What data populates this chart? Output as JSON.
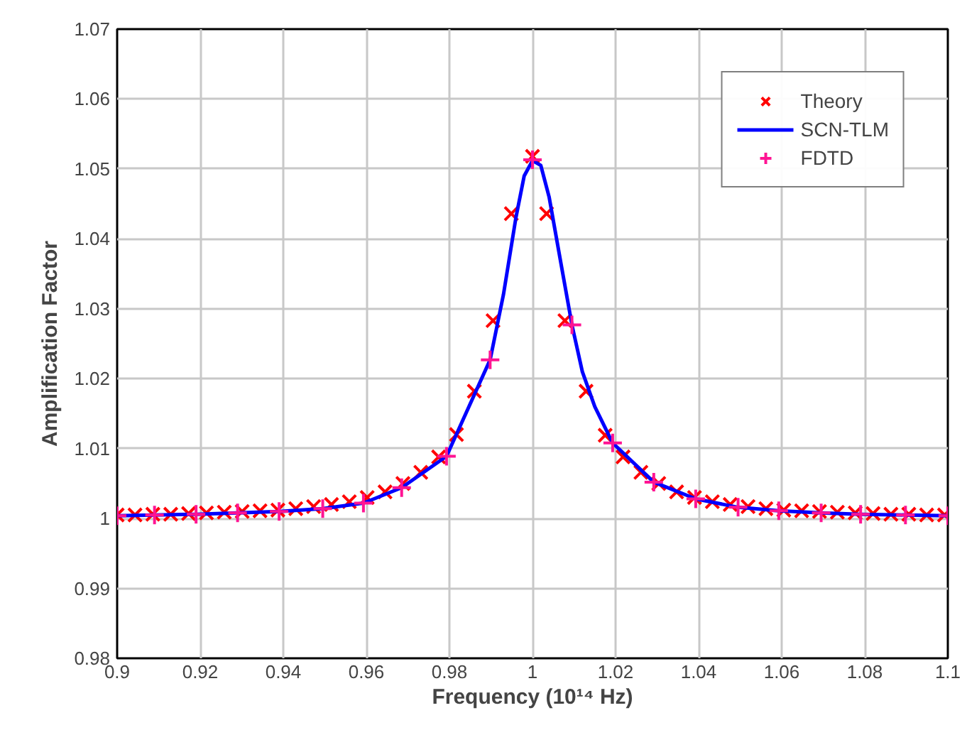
{
  "chart_data": {
    "type": "line",
    "xlabel": "Frequency (10¹⁴ Hz)",
    "ylabel": "Amplification Factor",
    "xlim": [
      0.9,
      1.1
    ],
    "ylim": [
      0.98,
      1.07
    ],
    "xticks": [
      0.9,
      0.92,
      0.94,
      0.96,
      0.98,
      1,
      1.02,
      1.04,
      1.06,
      1.08,
      1.1
    ],
    "yticks": [
      0.98,
      0.99,
      1,
      1.01,
      1.02,
      1.03,
      1.04,
      1.05,
      1.06,
      1.07
    ],
    "grid": true,
    "legend": "top right",
    "series": [
      {
        "name": "Theory",
        "type": "scatter",
        "marker": "x",
        "color": "#ff0000",
        "x": [
          0.9,
          0.9043,
          0.9086,
          0.9129,
          0.9172,
          0.9215,
          0.9258,
          0.9301,
          0.9344,
          0.9387,
          0.943,
          0.9473,
          0.9516,
          0.9559,
          0.9602,
          0.9645,
          0.9688,
          0.9731,
          0.9774,
          0.9817,
          0.986,
          0.9905,
          0.9949,
          1.0,
          1.0034,
          1.0078,
          1.0129,
          1.0175,
          1.0218,
          1.0261,
          1.0304,
          1.0347,
          1.039,
          1.0433,
          1.0476,
          1.0519,
          1.0562,
          1.0605,
          1.0648,
          1.0691,
          1.0734,
          1.0777,
          1.082,
          1.0863,
          1.0906,
          1.0949,
          1.0992
        ],
        "values": [
          1.0005,
          1.0005,
          1.0006,
          1.0006,
          1.0007,
          1.0008,
          1.0009,
          1.001,
          1.0011,
          1.0012,
          1.0014,
          1.0017,
          1.002,
          1.0024,
          1.003,
          1.0038,
          1.005,
          1.0066,
          1.0088,
          1.012,
          1.0182,
          1.0283,
          1.0436,
          1.0518,
          1.0436,
          1.0283,
          1.0182,
          1.0119,
          1.0088,
          1.0066,
          1.005,
          1.0038,
          1.003,
          1.0024,
          1.002,
          1.0017,
          1.0014,
          1.0012,
          1.0011,
          1.001,
          1.0009,
          1.0008,
          1.0007,
          1.0006,
          1.0006,
          1.0005,
          1.0005
        ]
      },
      {
        "name": "SCN-TLM",
        "color": "#0000ff",
        "x": [
          0.9,
          0.909,
          0.919,
          0.929,
          0.939,
          0.9495,
          0.9593,
          0.9685,
          0.9793,
          0.9898,
          0.993,
          0.996,
          0.998,
          1.0,
          1.002,
          1.004,
          1.007,
          1.0095,
          1.012,
          1.015,
          1.0193,
          1.0292,
          1.0393,
          1.0495,
          1.0593,
          1.0695,
          1.079,
          1.0898,
          1.1
        ],
        "values": [
          1.0004,
          1.0005,
          1.0006,
          1.0008,
          1.001,
          1.0014,
          1.0022,
          1.0044,
          1.0089,
          1.0227,
          1.032,
          1.043,
          1.049,
          1.0512,
          1.0505,
          1.046,
          1.036,
          1.0277,
          1.021,
          1.016,
          1.0108,
          1.0052,
          1.0028,
          1.0016,
          1.0011,
          1.0008,
          1.0006,
          1.0005,
          1.0004
        ]
      },
      {
        "name": "FDTD",
        "type": "scatter",
        "marker": "cross",
        "color": "#ff1493",
        "x": [
          0.9,
          0.909,
          0.919,
          0.929,
          0.939,
          0.9495,
          0.9593,
          0.9685,
          0.9793,
          0.9898,
          1.0,
          1.0095,
          1.0193,
          1.0292,
          1.0393,
          1.0495,
          1.0593,
          1.0695,
          1.079,
          1.0898,
          1.1
        ],
        "values": [
          1.0004,
          1.0005,
          1.0006,
          1.0008,
          1.001,
          1.0014,
          1.0022,
          1.0044,
          1.0089,
          1.0227,
          1.0513,
          1.0277,
          1.0108,
          1.0052,
          1.0028,
          1.0016,
          1.0011,
          1.0008,
          1.0006,
          1.0005,
          1.0004
        ]
      }
    ]
  }
}
